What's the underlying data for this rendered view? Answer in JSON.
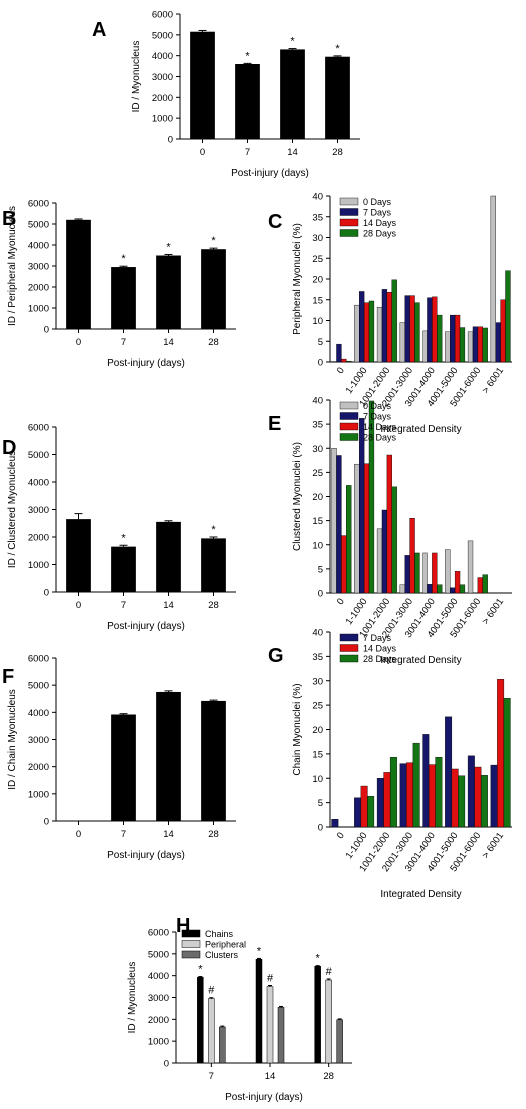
{
  "colors": {
    "black_bar": "#000000",
    "day0": "#c0c0c0",
    "day7": "#16166b",
    "day14": "#e01010",
    "day28": "#147514",
    "chains": "#000000",
    "peripheral": "#cfcfcf",
    "clusters": "#6b6b6b"
  },
  "chart_data": [
    {
      "panel": "A",
      "type": "bar",
      "categories": [
        "0",
        "7",
        "14",
        "28"
      ],
      "values": [
        5150,
        3600,
        4300,
        3950
      ],
      "errors": [
        60,
        30,
        40,
        40
      ],
      "significance": [
        "",
        "*",
        "*",
        "*"
      ],
      "xlabel": "Post-injury (days)",
      "ylabel": "ID / Myonucleus",
      "ylim": [
        0,
        6000
      ],
      "yticks": [
        "0",
        "1000",
        "2000",
        "3000",
        "4000",
        "5000",
        "6000"
      ]
    },
    {
      "panel": "B",
      "type": "bar",
      "categories": [
        "0",
        "7",
        "14",
        "28"
      ],
      "values": [
        5200,
        2950,
        3500,
        3800
      ],
      "errors": [
        40,
        40,
        50,
        50
      ],
      "significance": [
        "",
        "*",
        "*",
        "*"
      ],
      "xlabel": "Post-injury (days)",
      "ylabel": "ID / Peripheral Myonucleus",
      "ylim": [
        0,
        6000
      ],
      "yticks": [
        "0",
        "1000",
        "2000",
        "3000",
        "4000",
        "5000",
        "6000"
      ]
    },
    {
      "panel": "C",
      "type": "bar",
      "categories": [
        "0",
        "1-1000",
        "1001-2000",
        "2001-3000",
        "3001-4000",
        "4001-5000",
        "5001-6000",
        "> 6001"
      ],
      "series": [
        {
          "name": "0 Days",
          "values": [
            0.1,
            13.7,
            13.2,
            9.5,
            7.5,
            7.3,
            7.3,
            40
          ]
        },
        {
          "name": "7 Days",
          "values": [
            4.3,
            17,
            17.5,
            16,
            15.5,
            11.3,
            8.5,
            9.5
          ]
        },
        {
          "name": "14 Days",
          "values": [
            0.7,
            14.3,
            16.8,
            16,
            15.7,
            11.3,
            8.5,
            15
          ]
        },
        {
          "name": "28 Days",
          "values": [
            0.2,
            14.7,
            19.8,
            14.3,
            11.3,
            8.3,
            8.2,
            22
          ]
        }
      ],
      "xlabel": "Integrated Density",
      "ylabel": "Peripheral Myonuclei (%)",
      "ylim": [
        0,
        40
      ],
      "yticks": [
        "0",
        "5",
        "10",
        "15",
        "20",
        "25",
        "30",
        "35",
        "40"
      ]
    },
    {
      "panel": "D",
      "type": "bar",
      "categories": [
        "0",
        "7",
        "14",
        "28"
      ],
      "values": [
        2650,
        1650,
        2550,
        1950
      ],
      "errors": [
        200,
        50,
        40,
        50
      ],
      "significance": [
        "",
        "*",
        "",
        "*"
      ],
      "xlabel": "Post-injury (days)",
      "ylabel": "ID / Clustered Myonucleus",
      "ylim": [
        0,
        6000
      ],
      "yticks": [
        "0",
        "1000",
        "2000",
        "3000",
        "4000",
        "5000",
        "6000"
      ]
    },
    {
      "panel": "E",
      "type": "bar",
      "categories": [
        "0",
        "1-1000",
        "1001-2000",
        "2001-3000",
        "3001-4000",
        "4001-5000",
        "5001-6000",
        "> 6001"
      ],
      "series": [
        {
          "name": "0 Days",
          "values": [
            30,
            26.7,
            13.3,
            1.7,
            8.3,
            9,
            10.8,
            0
          ]
        },
        {
          "name": "7 Days",
          "values": [
            28.5,
            36.2,
            17.2,
            7.8,
            1.8,
            1.1,
            0,
            0
          ]
        },
        {
          "name": "14 Days",
          "values": [
            11.9,
            26.8,
            28.6,
            15.5,
            8.3,
            4.5,
            3.2,
            0
          ]
        },
        {
          "name": "28 Days",
          "values": [
            22.3,
            39.8,
            22,
            8.3,
            1.7,
            1.7,
            3.8,
            0
          ]
        }
      ],
      "xlabel": "Integrated Density",
      "ylabel": "Clustered Myonuclei (%)",
      "ylim": [
        0,
        40
      ],
      "yticks": [
        "0",
        "5",
        "10",
        "15",
        "20",
        "25",
        "30",
        "35",
        "40"
      ]
    },
    {
      "panel": "F",
      "type": "bar",
      "categories": [
        "0",
        "7",
        "14",
        "28"
      ],
      "values": [
        0,
        3920,
        4750,
        4420
      ],
      "errors": [
        0,
        30,
        40,
        30
      ],
      "significance": [
        "",
        "",
        "",
        ""
      ],
      "xlabel": "Post-injury (days)",
      "ylabel": "ID / Chain Myonucleus",
      "ylim": [
        0,
        6000
      ],
      "yticks": [
        "0",
        "1000",
        "2000",
        "3000",
        "4000",
        "5000",
        "6000"
      ]
    },
    {
      "panel": "G",
      "type": "bar",
      "categories": [
        "0",
        "1-1000",
        "1001-2000",
        "2001-3000",
        "3001-4000",
        "4001-5000",
        "5001-6000",
        "> 6001"
      ],
      "series": [
        {
          "name": "7 Days",
          "values": [
            1.6,
            6,
            10,
            13,
            19,
            22.6,
            14.6,
            12.7
          ]
        },
        {
          "name": "14 Days",
          "values": [
            0,
            8.4,
            11.2,
            13.2,
            12.8,
            11.9,
            12.3,
            30.3
          ]
        },
        {
          "name": "28 Days",
          "values": [
            0,
            6.3,
            14.3,
            17.2,
            14.3,
            10.5,
            10.6,
            26.4
          ]
        }
      ],
      "xlabel": "Integrated Density",
      "ylabel": "Chain Myonuclei (%)",
      "ylim": [
        0,
        40
      ],
      "yticks": [
        "0",
        "5",
        "10",
        "15",
        "20",
        "25",
        "30",
        "35",
        "40"
      ]
    },
    {
      "panel": "H",
      "type": "bar",
      "categories": [
        "7",
        "14",
        "28"
      ],
      "series": [
        {
          "name": "Chains",
          "values": [
            3930,
            4750,
            4430
          ],
          "errors": [
            30,
            40,
            30
          ],
          "marks": [
            "*",
            "*",
            "*"
          ]
        },
        {
          "name": "Peripheral",
          "values": [
            2950,
            3500,
            3800
          ],
          "errors": [
            40,
            50,
            50
          ],
          "marks": [
            "#",
            "#",
            "#"
          ]
        },
        {
          "name": "Clusters",
          "values": [
            1650,
            2550,
            1980
          ],
          "errors": [
            40,
            40,
            40
          ],
          "marks": [
            "",
            "",
            ""
          ]
        }
      ],
      "xlabel": "Post-injury (days)",
      "ylabel": "ID / Myonucleus",
      "ylim": [
        0,
        6000
      ],
      "yticks": [
        "0",
        "1000",
        "2000",
        "3000",
        "4000",
        "5000",
        "6000"
      ]
    }
  ]
}
